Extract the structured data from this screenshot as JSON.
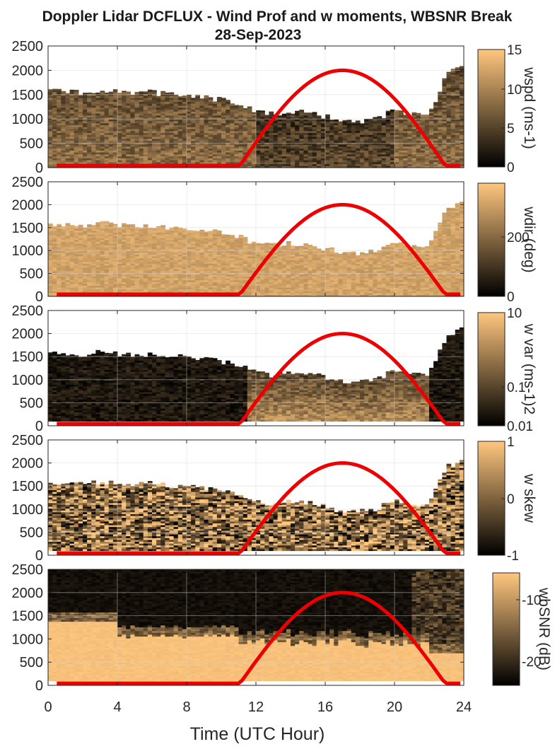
{
  "title": {
    "line1": "Doppler Lidar DCFLUX - Wind Prof and w moments, WBSNR Break",
    "line2": "28-Sep-2023"
  },
  "colors": {
    "colormap_low": "#000000",
    "colormap_high": "#ffc77f",
    "sun_curve": "#ee0000",
    "grid": "#d6d6d6",
    "axis": "#262626"
  },
  "xaxis": {
    "label": "Time (UTC Hour)",
    "ticks": [
      "0",
      "4",
      "8",
      "12",
      "16",
      "20",
      "24"
    ]
  },
  "yaxis": {
    "ticks": [
      "0",
      "500",
      "1000",
      "1500",
      "2000",
      "2500"
    ]
  },
  "panels": [
    {
      "id": "wspd",
      "cb_label": "wspd (ms-1)",
      "cb_ticks": [
        "0",
        "5",
        "10",
        "15"
      ]
    },
    {
      "id": "wdir",
      "cb_label": "wdir (deg)",
      "cb_ticks": [
        "0",
        "200"
      ]
    },
    {
      "id": "wvar",
      "cb_label": "w var (ms-1)2",
      "cb_ticks": [
        "0.01",
        "0.1",
        "10"
      ]
    },
    {
      "id": "wskew",
      "cb_label": "w skew",
      "cb_ticks": [
        "-1",
        "0",
        "1"
      ]
    },
    {
      "id": "wbsnr",
      "cb_label": "wbSNR (dB)",
      "cb_ticks": [
        "-20",
        "-10"
      ]
    }
  ],
  "chart_data": {
    "type": "heatmap",
    "title": "Doppler Lidar DCFLUX - Wind Prof and w moments, WBSNR Break 28-Sep-2023",
    "xlabel": "Time (UTC Hour)",
    "ylabel": "",
    "xlim": [
      0,
      24
    ],
    "ylim": [
      0,
      2500
    ],
    "x_ticks": [
      0,
      4,
      8,
      12,
      16,
      20,
      24
    ],
    "y_ticks": [
      0,
      500,
      1000,
      1500,
      2000,
      2500
    ],
    "data_top_height": {
      "hours": [
        0,
        1,
        2,
        3,
        4,
        5,
        6,
        7,
        8,
        9,
        10,
        11,
        12,
        13,
        14,
        15,
        16,
        17,
        18,
        19,
        20,
        21,
        22,
        23,
        24
      ],
      "meters": [
        1600,
        1550,
        1550,
        1600,
        1550,
        1550,
        1550,
        1500,
        1500,
        1450,
        1400,
        1300,
        1150,
        1100,
        1150,
        1150,
        1050,
        950,
        950,
        1000,
        1200,
        1100,
        1100,
        1900,
        2100
      ]
    },
    "sun_curve": {
      "hours": [
        0,
        11,
        12,
        13,
        14,
        15,
        16,
        17,
        18,
        19,
        20,
        21,
        22,
        23,
        24
      ],
      "height": [
        0,
        0,
        520,
        1010,
        1420,
        1740,
        1930,
        2000,
        1930,
        1740,
        1420,
        1010,
        520,
        0,
        0
      ]
    },
    "series": [
      {
        "name": "wspd (ms-1)",
        "clim": [
          0,
          15
        ]
      },
      {
        "name": "wdir (deg)",
        "clim": [
          0,
          360
        ]
      },
      {
        "name": "w var (ms-1)2",
        "clim": [
          0.01,
          10
        ],
        "scale": "log"
      },
      {
        "name": "w skew",
        "clim": [
          -1,
          1
        ]
      },
      {
        "name": "wbSNR (dB)",
        "clim": [
          -25,
          -5
        ]
      }
    ]
  }
}
